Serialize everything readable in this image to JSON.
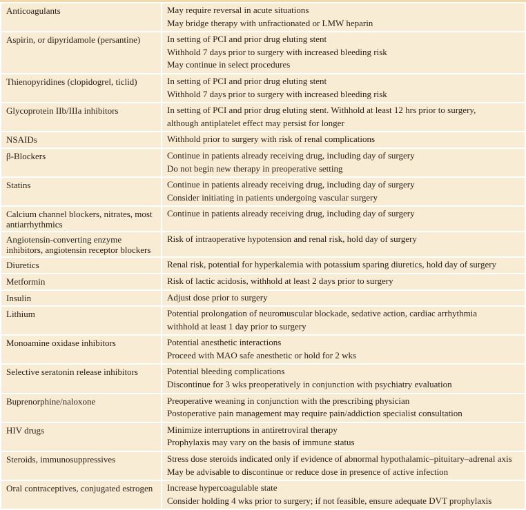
{
  "rows": [
    {
      "drug": "Anticoagulants",
      "notes": [
        "May require reversal in acute situations",
        "May bridge therapy with unfractionated or LMW heparin"
      ]
    },
    {
      "drug": "Aspirin, or dipyridamole (persantine)",
      "notes": [
        "In setting of PCI and prior drug eluting stent",
        "Withhold 7 days prior to surgery with increased bleeding risk",
        "May continue in select procedures"
      ]
    },
    {
      "drug": "Thienopyridines (clopidogrel, ticlid)",
      "notes": [
        "In setting of PCI and prior drug eluting stent",
        "Withhold 7 days prior to surgery with increased bleeding risk"
      ]
    },
    {
      "drug": "Glycoprotein IIb/IIIa inhibitors",
      "notes": [
        "In setting of PCI and prior drug eluting stent. Withhold at least 12 hrs prior to surgery,",
        "although antiplatelet effect may persist for longer"
      ]
    },
    {
      "drug": "NSAIDs",
      "notes": [
        "Withhold prior to surgery with risk of renal complications"
      ]
    },
    {
      "drug": "β-Blockers",
      "notes": [
        "Continue in patients already receiving drug, including day of surgery",
        "Do not begin new therapy in preoperative setting"
      ]
    },
    {
      "drug": "Statins",
      "notes": [
        "Continue in patients already receiving drug, including day of surgery",
        "Consider initiating in patients undergoing vascular surgery"
      ]
    },
    {
      "drug": "Calcium channel blockers, nitrates, most antiarrhythmics",
      "notes": [
        "Continue in patients already receiving drug, including day of surgery"
      ]
    },
    {
      "drug": "Angiotensin-converting enzyme inhibitors, angiotensin receptor blockers",
      "notes": [
        "Risk of intraoperative hypotension and renal risk, hold day of surgery"
      ]
    },
    {
      "drug": "Diuretics",
      "notes": [
        "Renal risk, potential for hyperkalemia with potassium sparing diuretics, hold day of surgery"
      ]
    },
    {
      "drug": "Metformin",
      "notes": [
        "Risk of lactic acidosis, withhold at least 2 days prior to surgery"
      ]
    },
    {
      "drug": "Insulin",
      "notes": [
        "Adjust dose prior to surgery"
      ]
    },
    {
      "drug": "Lithium",
      "notes": [
        "Potential prolongation of neuromuscular blockade, sedative action, cardiac arrhythmia",
        "withhold at least 1 day prior to surgery"
      ]
    },
    {
      "drug": "Monoamine oxidase inhibitors",
      "notes": [
        "Potential anesthetic interactions",
        "Proceed with MAO safe anesthetic or hold for 2 wks"
      ]
    },
    {
      "drug": "Selective seratonin release inhibitors",
      "notes": [
        "Potential bleeding complications",
        "Discontinue for 3 wks preoperatively in conjunction with psychiatry evaluation"
      ]
    },
    {
      "drug": "Buprenorphine/naloxone",
      "notes": [
        "Preoperative weaning in conjunction with the prescribing physician",
        "Postoperative pain management may require pain/addiction specialist consultation"
      ]
    },
    {
      "drug": "HIV drugs",
      "notes": [
        "Minimize interruptions in antiretroviral therapy",
        "Prophylaxis may vary on the basis of immune status"
      ]
    },
    {
      "drug": "Steroids, immunosuppressives",
      "notes": [
        "Stress dose steroids indicated only if evidence of abnormal hypothalamic–pituitary–adrenal axis",
        "May be advisable to discontinue or reduce dose in presence of active infection"
      ]
    },
    {
      "drug": "Oral contraceptives, conjugated estrogen",
      "notes": [
        "Increase hypercoagulable state",
        "Consider holding 4 wks prior to surgery; if not feasible, ensure adequate DVT prophylaxis"
      ]
    }
  ]
}
